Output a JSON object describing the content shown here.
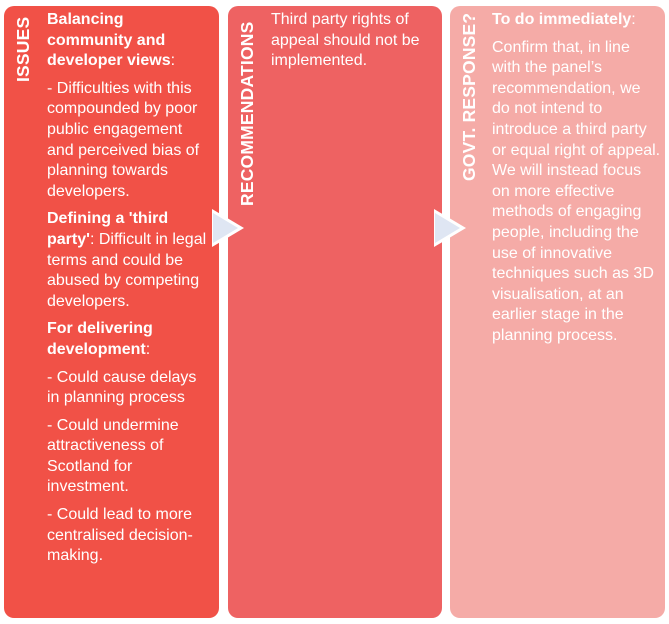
{
  "colors": {
    "issues_panel": "#f15147",
    "recommendations_panel": "#ee6262",
    "response_panel": "#f5aba7",
    "text": "#ffffff"
  },
  "issues": {
    "label": "ISSUES",
    "heading1_bold": "Balancing community and developer views",
    "heading1_suffix": ":",
    "item1": "- Difficulties with this compounded by poor public engagement and perceived bias of planning towards developers.",
    "heading2_bold": "Defining a 'third party'",
    "heading2_text": ": Difficult in legal terms and could be abused by competing developers.",
    "heading3_bold": "For delivering development",
    "heading3_suffix": ":",
    "item2": "- Could cause delays in planning process",
    "item3": "- Could undermine attractiveness of Scotland for investment.",
    "item4": "- Could lead to more centralised decision-making."
  },
  "recommendations": {
    "label": "RECOMMENDATIONS",
    "text": "Third party rights of appeal should not be implemented."
  },
  "response": {
    "label": "GOVT. RESPONSE?",
    "heading_bold": "To do immediately",
    "heading_suffix": ":",
    "text": "Confirm that, in line with the panel’s recommendation, we do not intend to introduce a third party or equal right of appeal. We will instead focus on more effective methods of engaging people, including the use of innovative techniques such as 3D visualisation, at an earlier stage in the planning process."
  }
}
